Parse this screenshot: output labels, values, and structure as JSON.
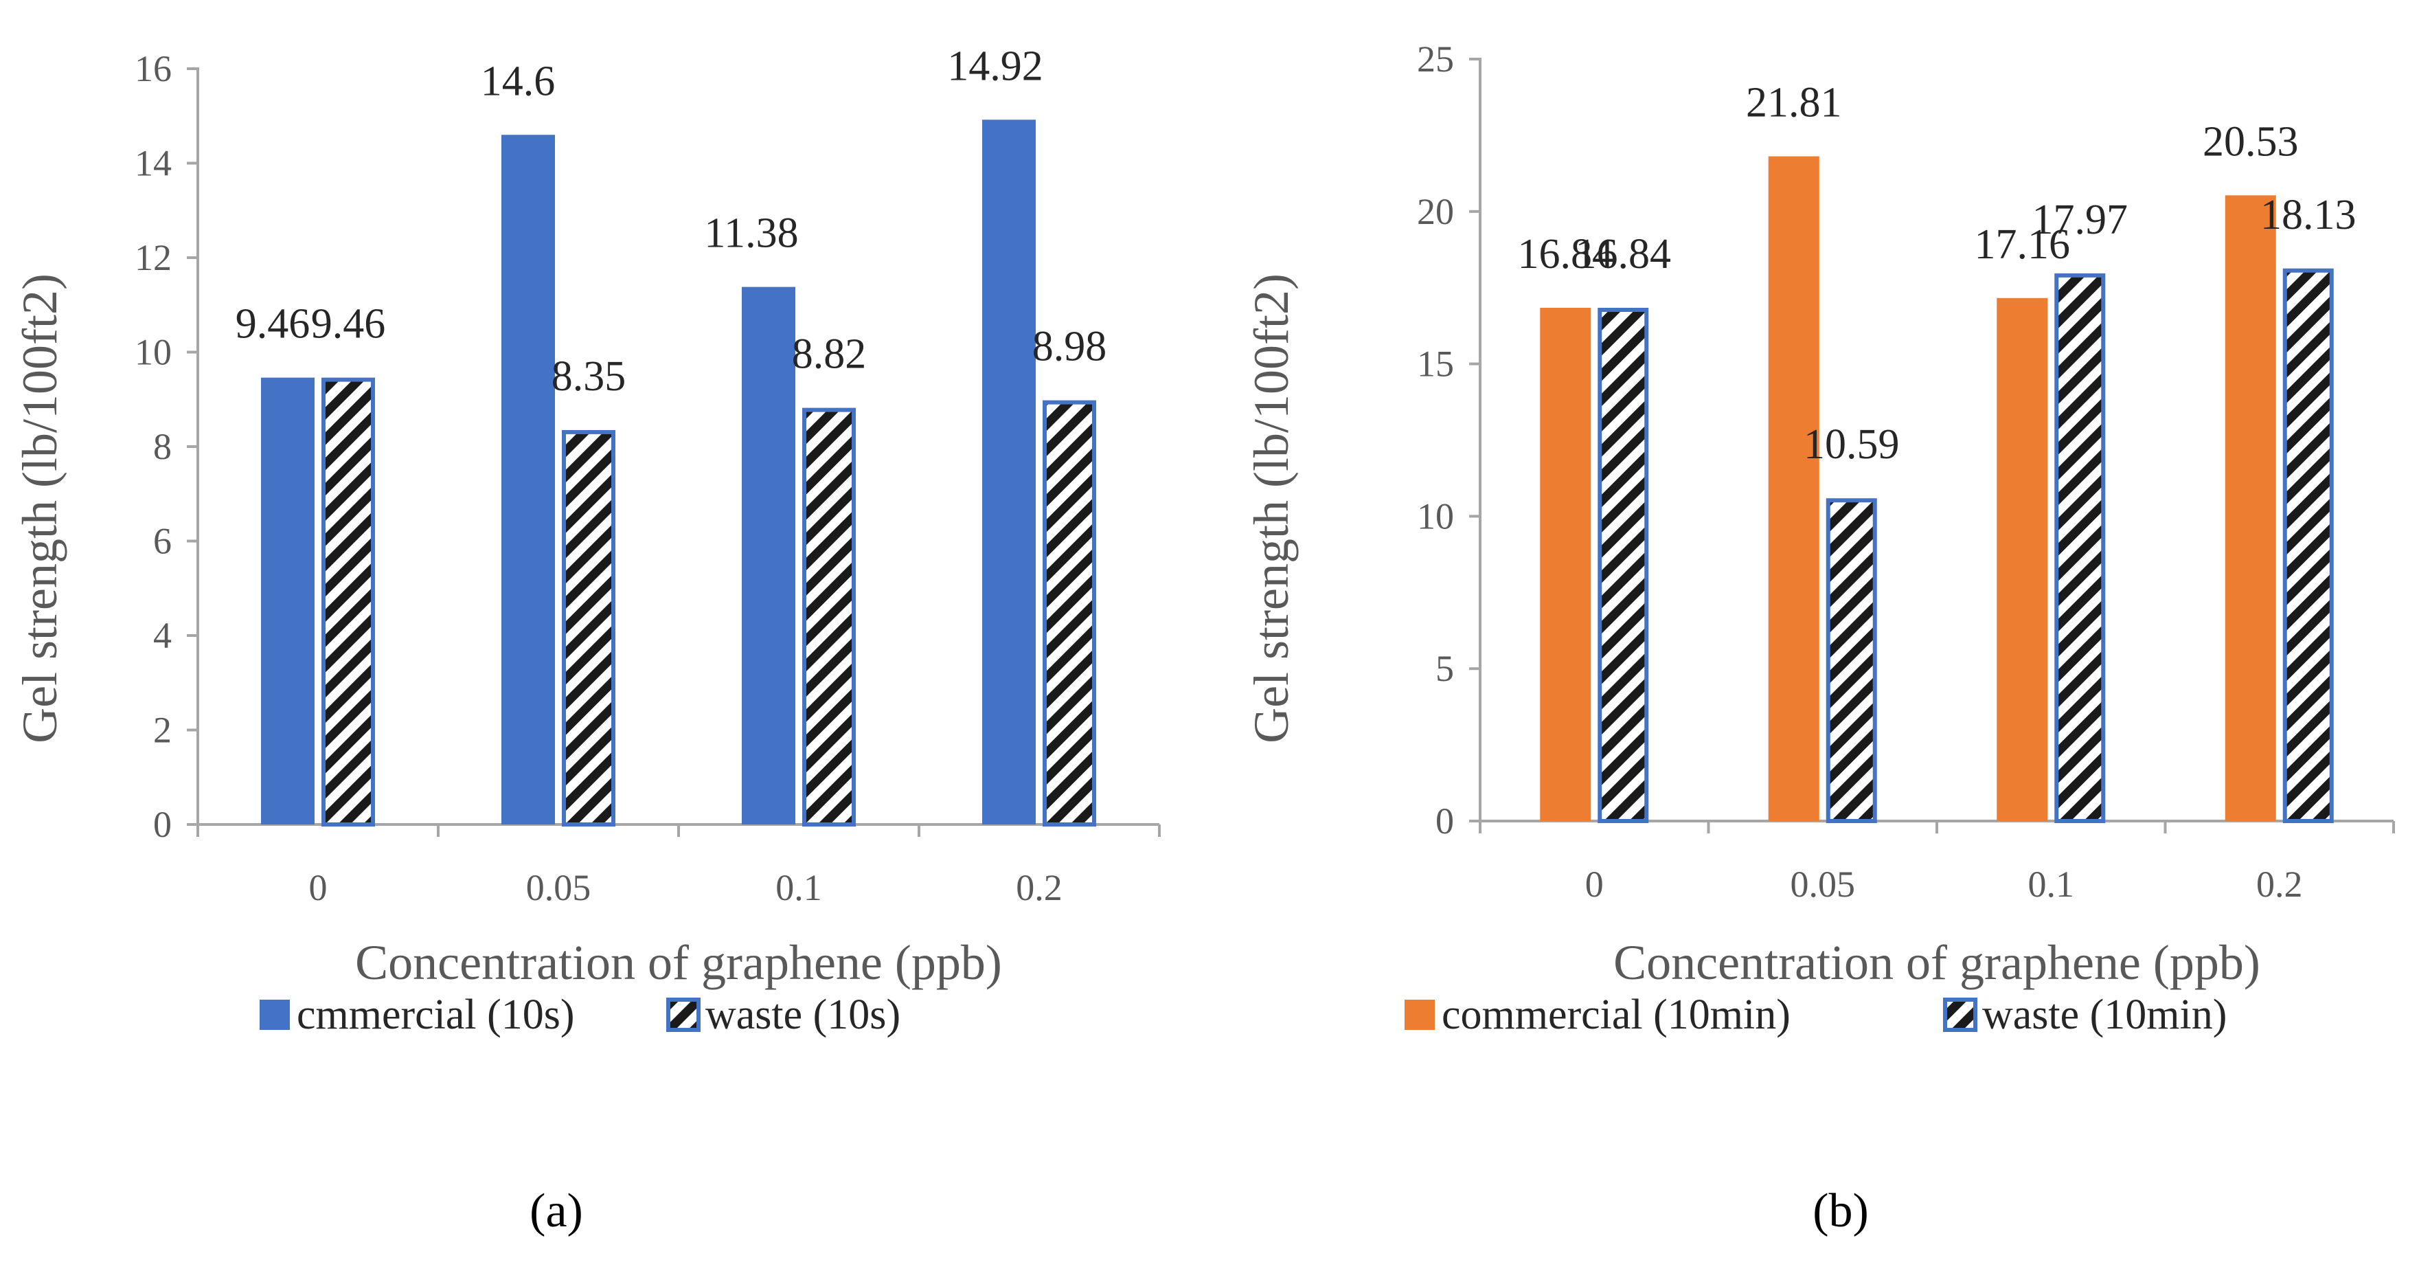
{
  "colors": {
    "commercial_a": "#4472C4",
    "commercial_b": "#ED7D31",
    "waste_outline": "#4472C4",
    "waste_pattern": "#1a1a1a",
    "axis": "#a6a6a6"
  },
  "chart_data": [
    {
      "type": "bar",
      "panel": "(a)",
      "categories": [
        "0",
        "0.05",
        "0.1",
        "0.2"
      ],
      "series": [
        {
          "name": "cmmercial (10s)",
          "values": [
            9.46,
            14.6,
            11.38,
            14.92
          ],
          "labels": [
            "9.46",
            "14.6",
            "11.38",
            "14.92"
          ],
          "style": "solid-blue"
        },
        {
          "name": "waste (10s)",
          "values": [
            9.46,
            8.35,
            8.82,
            8.98
          ],
          "labels": [
            "9.46",
            "8.35",
            "8.82",
            "8.98"
          ],
          "style": "hatched"
        }
      ],
      "xlabel": "Concentration of graphene (ppb)",
      "ylabel": "Gel strength (lb/100ft2)",
      "ylim": [
        0,
        16
      ],
      "yticks": [
        "0",
        "2",
        "4",
        "6",
        "8",
        "10",
        "12",
        "14",
        "16"
      ],
      "grid": false,
      "legend": "bottom"
    },
    {
      "type": "bar",
      "panel": "(b)",
      "categories": [
        "0",
        "0.05",
        "0.1",
        "0.2"
      ],
      "series": [
        {
          "name": "commercial (10min)",
          "values": [
            16.84,
            21.81,
            17.16,
            20.53
          ],
          "labels": [
            "16.84",
            "21.81",
            "17.16",
            "20.53"
          ],
          "style": "solid-orange"
        },
        {
          "name": "waste (10min)",
          "values": [
            16.84,
            10.59,
            17.97,
            18.13
          ],
          "labels": [
            "16.84",
            "10.59",
            "17.97",
            "18.13"
          ],
          "style": "hatched"
        }
      ],
      "xlabel": "Concentration of graphene (ppb)",
      "ylabel": "Gel strength (lb/100ft2)",
      "ylim": [
        0,
        25
      ],
      "yticks": [
        "0",
        "5",
        "10",
        "15",
        "20",
        "25"
      ],
      "grid": false,
      "legend": "bottom"
    }
  ]
}
